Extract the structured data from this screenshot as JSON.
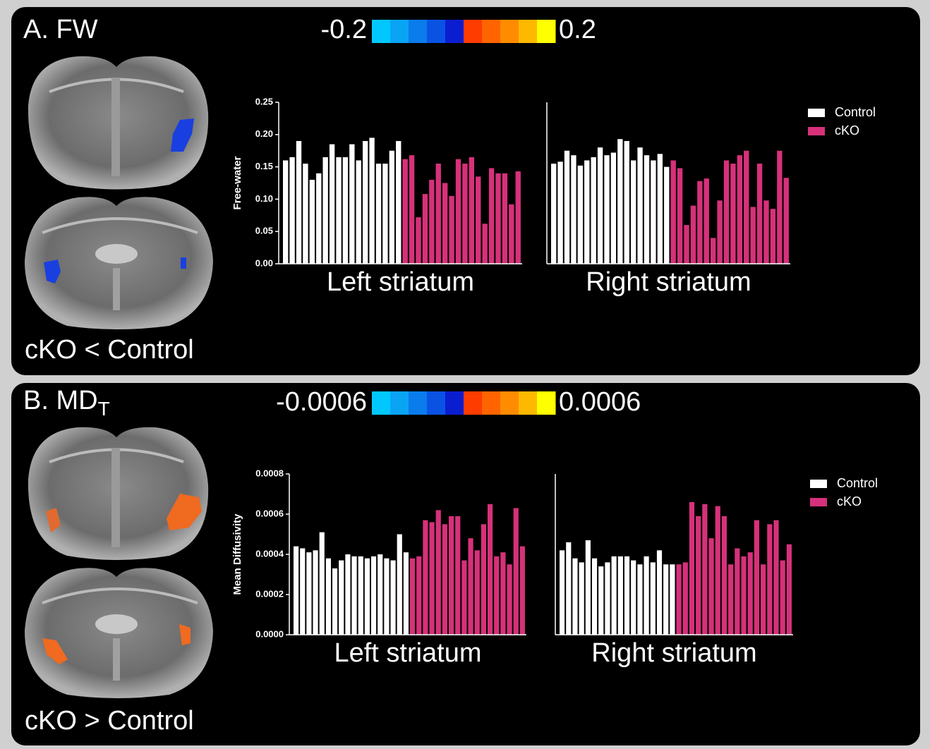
{
  "panels": [
    {
      "label": "A. FW",
      "colorbar": {
        "min": -0.2,
        "max": 0.2
      },
      "caption": "cKO < Control"
    },
    {
      "label": "B. MD",
      "label_subscript": "T",
      "colorbar": {
        "min": -0.0006,
        "max": 0.0006
      },
      "caption": "cKO > Control"
    }
  ],
  "chart_data": [
    {
      "type": "bar",
      "xlabel": "Left striatum",
      "ylabel": "Free-water",
      "ylim": [
        0,
        0.25
      ],
      "yticks": [
        {
          "value": 0,
          "label": "0.00"
        },
        {
          "value": 0.05,
          "label": "0.05"
        },
        {
          "value": 0.1,
          "label": "0.10"
        },
        {
          "value": 0.15,
          "label": "0.15"
        },
        {
          "value": 0.2,
          "label": "0.20"
        },
        {
          "value": 0.25,
          "label": "0.25"
        }
      ],
      "series": [
        {
          "color": "#ffffff",
          "values": [
            0.16,
            0.165,
            0.19,
            0.155,
            0.13,
            0.14,
            0.165,
            0.185,
            0.165,
            0.165,
            0.185,
            0.16,
            0.19,
            0.195,
            0.155,
            0.155,
            0.175,
            0.19
          ]
        },
        {
          "color": "#d6317a",
          "values": [
            0.162,
            0.168,
            0.072,
            0.108,
            0.13,
            0.155,
            0.125,
            0.105,
            0.162,
            0.155,
            0.165,
            0.135,
            0.062,
            0.148,
            0.14,
            0.14,
            0.092,
            0.143
          ]
        }
      ]
    },
    {
      "type": "bar",
      "xlabel": "Right striatum",
      "ylim": [
        0,
        0.25
      ],
      "legend": "upper right",
      "series": [
        {
          "name": "Control",
          "color": "#ffffff",
          "values": [
            0.155,
            0.158,
            0.175,
            0.168,
            0.152,
            0.16,
            0.165,
            0.18,
            0.168,
            0.172,
            0.193,
            0.19,
            0.16,
            0.18,
            0.168,
            0.16,
            0.17,
            0.15
          ]
        },
        {
          "name": "cKO",
          "color": "#d6317a",
          "values": [
            0.16,
            0.148,
            0.06,
            0.09,
            0.128,
            0.132,
            0.04,
            0.098,
            0.16,
            0.155,
            0.168,
            0.175,
            0.088,
            0.155,
            0.098,
            0.085,
            0.175,
            0.133
          ]
        }
      ]
    },
    {
      "type": "bar",
      "xlabel": "Left striatum",
      "ylabel": "Mean Diffusivity",
      "ylim": [
        0,
        0.0008
      ],
      "yticks": [
        {
          "value": 0,
          "label": "0.0000"
        },
        {
          "value": 0.0002,
          "label": "0.0002"
        },
        {
          "value": 0.0004,
          "label": "0.0004"
        },
        {
          "value": 0.0006,
          "label": "0.0006"
        },
        {
          "value": 0.0008,
          "label": "0.0008"
        }
      ],
      "series": [
        {
          "color": "#ffffff",
          "values": [
            0.00044,
            0.00043,
            0.00041,
            0.00042,
            0.00051,
            0.00038,
            0.00033,
            0.00037,
            0.0004,
            0.00039,
            0.00039,
            0.00038,
            0.00039,
            0.0004,
            0.00038,
            0.00037,
            0.0005,
            0.00041
          ]
        },
        {
          "color": "#d6317a",
          "values": [
            0.00038,
            0.00039,
            0.00057,
            0.00056,
            0.00062,
            0.00055,
            0.00059,
            0.00059,
            0.00037,
            0.00048,
            0.00042,
            0.00055,
            0.00065,
            0.00039,
            0.00041,
            0.00035,
            0.00063,
            0.00044
          ]
        }
      ]
    },
    {
      "type": "bar",
      "xlabel": "Right striatum",
      "ylim": [
        0,
        0.0008
      ],
      "legend": "upper right",
      "series": [
        {
          "name": "Control",
          "color": "#ffffff",
          "values": [
            0.00042,
            0.00046,
            0.00038,
            0.00036,
            0.00047,
            0.00038,
            0.00034,
            0.00036,
            0.00039,
            0.00039,
            0.00039,
            0.00037,
            0.00035,
            0.00039,
            0.00036,
            0.00042,
            0.00035,
            0.00035
          ]
        },
        {
          "name": "cKO",
          "color": "#d6317a",
          "values": [
            0.00035,
            0.00036,
            0.00066,
            0.00059,
            0.00065,
            0.00048,
            0.00064,
            0.00059,
            0.00035,
            0.00043,
            0.00039,
            0.00041,
            0.00057,
            0.00035,
            0.00055,
            0.00057,
            0.00037,
            0.00045
          ]
        }
      ]
    }
  ]
}
